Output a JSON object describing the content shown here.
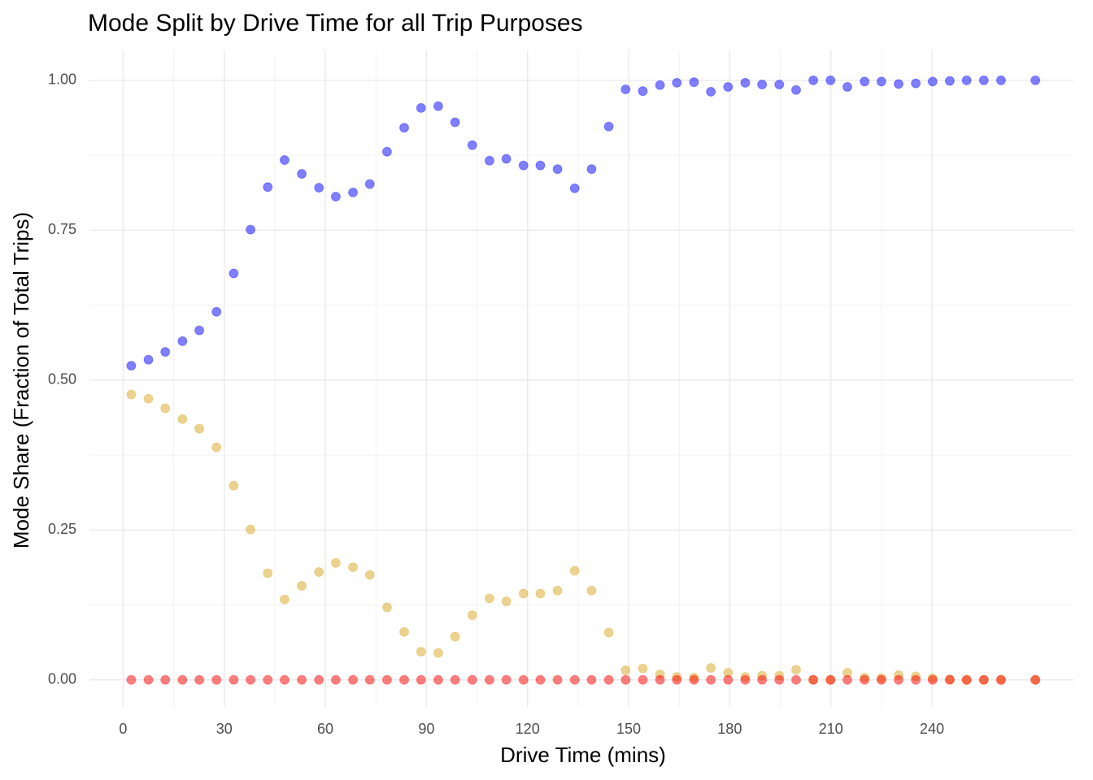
{
  "chart_data": {
    "type": "scatter",
    "title": "Mode Split by Drive Time for all Trip Purposes",
    "x_label": "Drive Time (mins)",
    "y_label": "Mode Share (Fraction of Total Trips)",
    "x": [
      2.4,
      7.5,
      12.5,
      17.6,
      22.6,
      27.7,
      32.8,
      37.8,
      42.9,
      47.9,
      53.0,
      58.1,
      63.1,
      68.2,
      73.2,
      78.3,
      83.4,
      88.4,
      93.5,
      98.5,
      103.6,
      108.7,
      113.7,
      118.8,
      123.8,
      128.9,
      134.0,
      139.0,
      144.1,
      149.1,
      154.2,
      159.3,
      164.3,
      169.4,
      174.4,
      179.5,
      184.6,
      189.6,
      194.7,
      199.7,
      204.8,
      209.9,
      214.9,
      220.0,
      225.0,
      230.1,
      235.2,
      240.2,
      245.3,
      250.3,
      255.4,
      260.5,
      270.7
    ],
    "series": [
      {
        "color": "#0000ff",
        "values": [
          0.524,
          0.534,
          0.547,
          0.565,
          0.583,
          0.614,
          0.678,
          0.751,
          0.822,
          0.867,
          0.844,
          0.821,
          0.806,
          0.813,
          0.827,
          0.881,
          0.921,
          0.954,
          0.957,
          0.93,
          0.892,
          0.866,
          0.869,
          0.858,
          0.858,
          0.852,
          0.82,
          0.852,
          0.923,
          0.985,
          0.982,
          0.992,
          0.996,
          0.997,
          0.981,
          0.989,
          0.996,
          0.993,
          0.993,
          0.984,
          1.0,
          1.0,
          0.989,
          0.998,
          0.998,
          0.994,
          0.995,
          0.998,
          0.999,
          1.0,
          1.0,
          1.0,
          1.0
        ]
      },
      {
        "color": "#daa520",
        "values": [
          0.476,
          0.469,
          0.453,
          0.435,
          0.419,
          0.388,
          0.324,
          0.251,
          0.178,
          0.134,
          0.157,
          0.18,
          0.195,
          0.188,
          0.175,
          0.121,
          0.08,
          0.047,
          0.045,
          0.072,
          0.108,
          0.136,
          0.131,
          0.144,
          0.144,
          0.149,
          0.182,
          0.149,
          0.079,
          0.016,
          0.019,
          0.009,
          0.005,
          0.004,
          0.02,
          0.012,
          0.005,
          0.007,
          0.007,
          0.017,
          0,
          0,
          0.012,
          0.004,
          0.003,
          0.008,
          0.006,
          0.003,
          0.001,
          0,
          0,
          0,
          0
        ]
      },
      {
        "color": "#ff0000",
        "values": [
          0,
          0,
          0,
          0,
          0,
          0,
          0,
          0,
          0,
          0,
          0,
          0,
          0,
          0,
          0,
          0,
          0,
          0,
          0,
          0,
          0,
          0,
          0,
          0,
          0,
          0,
          0,
          0,
          0,
          0,
          0,
          0,
          0,
          0,
          0,
          0,
          0,
          0,
          0,
          0,
          0,
          0,
          0,
          0,
          0,
          0,
          0,
          0,
          0,
          0,
          0,
          0,
          0
        ]
      }
    ],
    "xlim": [
      -10,
      282
    ],
    "ylim": [
      -0.045,
      1.05
    ],
    "xticks": [
      0,
      30,
      60,
      90,
      120,
      150,
      180,
      210,
      240
    ],
    "yticks": [
      {
        "value": 0,
        "label": "0.00"
      },
      {
        "value": 0.25,
        "label": "0.25"
      },
      {
        "value": 0.5,
        "label": "0.50"
      },
      {
        "value": 0.75,
        "label": "0.75"
      },
      {
        "value": 1,
        "label": "1.00"
      }
    ],
    "grid": true
  }
}
